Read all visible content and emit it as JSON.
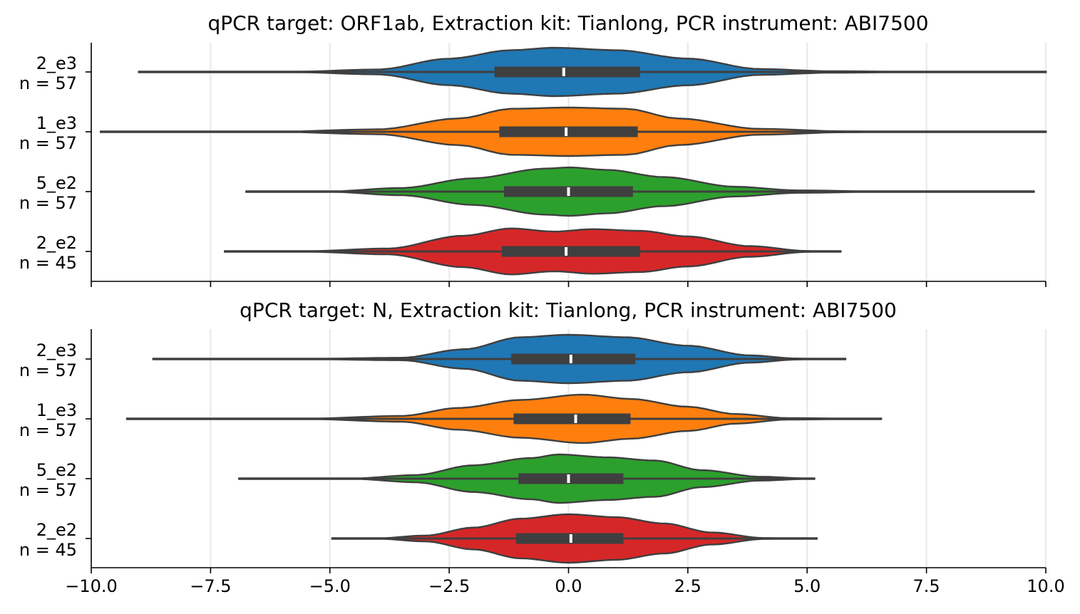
{
  "chart_data": [
    {
      "type": "violin",
      "orientation": "horizontal",
      "title": "qPCR target: ORF1ab, Extraction kit: Tianlong, PCR instrument: ABI7500",
      "xlabel": "",
      "ylabel": "",
      "xlim": [
        -10,
        10
      ],
      "grid": "vertical",
      "xticks": [
        -10,
        -7.5,
        -5,
        -2.5,
        0,
        2.5,
        5,
        7.5,
        10
      ],
      "xtick_labels_shown": false,
      "groups": [
        {
          "name": "2_e3",
          "count_label": "n = 57",
          "color": "#1f77b4",
          "min": -9.0,
          "q1": -1.55,
          "median": -0.1,
          "q3": 1.5,
          "max": 10.0,
          "density": [
            [
              -9.0,
              0.0
            ],
            [
              -5.8,
              0.01
            ],
            [
              -4.0,
              0.1
            ],
            [
              -2.5,
              0.55
            ],
            [
              -1.2,
              0.9
            ],
            [
              -0.3,
              1.0
            ],
            [
              1.0,
              0.9
            ],
            [
              2.5,
              0.55
            ],
            [
              4.0,
              0.12
            ],
            [
              5.5,
              0.03
            ],
            [
              7.5,
              0.01
            ],
            [
              10.0,
              0.0
            ]
          ]
        },
        {
          "name": "1_e3",
          "count_label": "n = 57",
          "color": "#ff7f0e",
          "min": -9.8,
          "q1": -1.45,
          "median": -0.05,
          "q3": 1.45,
          "max": 10.0,
          "density": [
            [
              -9.8,
              0.0
            ],
            [
              -6.0,
              0.01
            ],
            [
              -4.0,
              0.1
            ],
            [
              -2.3,
              0.55
            ],
            [
              -1.2,
              0.95
            ],
            [
              0.0,
              1.0
            ],
            [
              1.2,
              0.95
            ],
            [
              2.3,
              0.55
            ],
            [
              4.0,
              0.12
            ],
            [
              5.8,
              0.02
            ],
            [
              8.0,
              0.01
            ],
            [
              10.0,
              0.0
            ]
          ]
        },
        {
          "name": "5_e2",
          "count_label": "n = 57",
          "color": "#2ca02c",
          "min": -6.75,
          "q1": -1.35,
          "median": 0.0,
          "q3": 1.35,
          "max": 9.75,
          "density": [
            [
              -6.75,
              0.0
            ],
            [
              -5.0,
              0.01
            ],
            [
              -3.5,
              0.15
            ],
            [
              -2.0,
              0.55
            ],
            [
              -0.5,
              0.95
            ],
            [
              0.0,
              1.0
            ],
            [
              0.8,
              0.9
            ],
            [
              2.0,
              0.6
            ],
            [
              3.5,
              0.2
            ],
            [
              4.8,
              0.05
            ],
            [
              6.5,
              0.01
            ],
            [
              9.75,
              0.0
            ]
          ]
        },
        {
          "name": "2_e2",
          "count_label": "n = 45",
          "color": "#d62728",
          "min": -7.2,
          "q1": -1.4,
          "median": -0.05,
          "q3": 1.5,
          "max": 5.7,
          "density": [
            [
              -7.2,
              0.0
            ],
            [
              -5.5,
              0.01
            ],
            [
              -3.8,
              0.12
            ],
            [
              -2.2,
              0.65
            ],
            [
              -1.2,
              0.95
            ],
            [
              -0.3,
              0.82
            ],
            [
              0.5,
              0.92
            ],
            [
              1.5,
              0.85
            ],
            [
              2.5,
              0.62
            ],
            [
              3.8,
              0.22
            ],
            [
              5.0,
              0.02
            ],
            [
              5.7,
              0.0
            ]
          ]
        }
      ]
    },
    {
      "type": "violin",
      "orientation": "horizontal",
      "title": "qPCR target: N, Extraction kit: Tianlong, PCR instrument: ABI7500",
      "xlabel": "",
      "ylabel": "",
      "xlim": [
        -10,
        10
      ],
      "grid": "vertical",
      "xticks": [
        -10,
        -7.5,
        -5,
        -2.5,
        0,
        2.5,
        5,
        7.5,
        10
      ],
      "xtick_labels": [
        "−10.0",
        "−7.5",
        "−5.0",
        "−2.5",
        "0.0",
        "2.5",
        "5.0",
        "7.5",
        "10.0"
      ],
      "groups": [
        {
          "name": "2_e3",
          "count_label": "n = 57",
          "color": "#1f77b4",
          "min": -8.7,
          "q1": -1.2,
          "median": 0.05,
          "q3": 1.4,
          "max": 5.8,
          "density": [
            [
              -8.7,
              0.0
            ],
            [
              -5.5,
              0.01
            ],
            [
              -3.5,
              0.05
            ],
            [
              -2.2,
              0.4
            ],
            [
              -1.0,
              0.9
            ],
            [
              0.0,
              1.0
            ],
            [
              1.2,
              0.9
            ],
            [
              2.5,
              0.55
            ],
            [
              3.8,
              0.15
            ],
            [
              4.8,
              0.02
            ],
            [
              5.8,
              0.0
            ]
          ]
        },
        {
          "name": "1_e3",
          "count_label": "n = 57",
          "color": "#ff7f0e",
          "min": -9.25,
          "q1": -1.15,
          "median": 0.15,
          "q3": 1.3,
          "max": 6.55,
          "density": [
            [
              -9.25,
              0.0
            ],
            [
              -5.5,
              0.01
            ],
            [
              -3.5,
              0.12
            ],
            [
              -2.3,
              0.45
            ],
            [
              -1.0,
              0.78
            ],
            [
              0.3,
              1.0
            ],
            [
              1.3,
              0.82
            ],
            [
              2.5,
              0.5
            ],
            [
              3.5,
              0.2
            ],
            [
              4.6,
              0.03
            ],
            [
              6.55,
              0.0
            ]
          ]
        },
        {
          "name": "5_e2",
          "count_label": "n = 57",
          "color": "#2ca02c",
          "min": -6.9,
          "q1": -1.05,
          "median": 0.0,
          "q3": 1.15,
          "max": 5.15,
          "density": [
            [
              -6.9,
              0.0
            ],
            [
              -4.5,
              0.01
            ],
            [
              -3.2,
              0.15
            ],
            [
              -2.0,
              0.55
            ],
            [
              -0.8,
              0.85
            ],
            [
              -0.2,
              1.0
            ],
            [
              0.8,
              0.88
            ],
            [
              1.8,
              0.75
            ],
            [
              2.8,
              0.35
            ],
            [
              4.0,
              0.08
            ],
            [
              5.15,
              0.0
            ]
          ]
        },
        {
          "name": "2_e2",
          "count_label": "n = 45",
          "color": "#d62728",
          "min": -4.95,
          "q1": -1.1,
          "median": 0.05,
          "q3": 1.15,
          "max": 5.2,
          "density": [
            [
              -4.95,
              0.0
            ],
            [
              -4.0,
              0.01
            ],
            [
              -3.0,
              0.12
            ],
            [
              -2.0,
              0.45
            ],
            [
              -1.0,
              0.82
            ],
            [
              0.0,
              1.0
            ],
            [
              1.0,
              0.88
            ],
            [
              2.0,
              0.62
            ],
            [
              3.0,
              0.25
            ],
            [
              4.1,
              0.02
            ],
            [
              5.2,
              0.0
            ]
          ]
        }
      ]
    }
  ]
}
